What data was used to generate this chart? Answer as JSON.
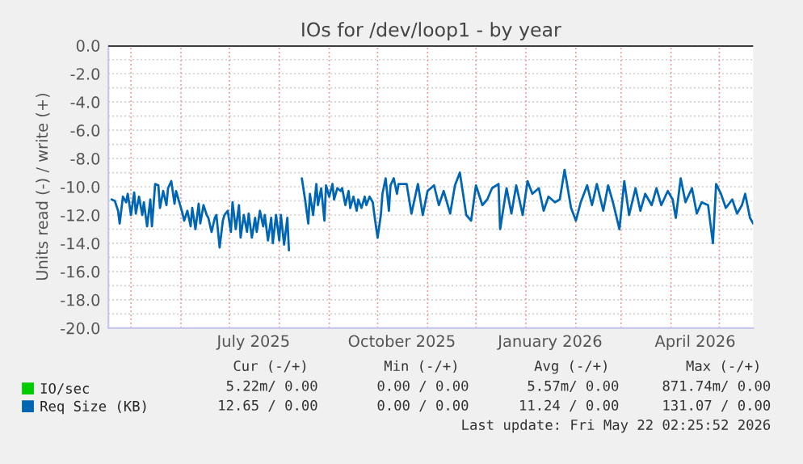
{
  "chart_data": {
    "type": "line",
    "title": "IOs for /dev/loop1 - by year",
    "ylabel": "Units read (-) / write (+)",
    "xlim": [
      "2025-04-17",
      "2026-05-22"
    ],
    "xticks": [
      {
        "value": "2025-05-01",
        "label": null
      },
      {
        "value": "2025-06-01",
        "label": null
      },
      {
        "value": "2025-07-01",
        "label": null
      },
      {
        "value": "2025-08-01",
        "label": null
      },
      {
        "value": "2025-09-01",
        "label": null
      },
      {
        "value": "2025-10-01",
        "label": null
      },
      {
        "value": "2025-11-01",
        "label": null
      },
      {
        "value": "2025-12-01",
        "label": null
      },
      {
        "value": "2026-01-01",
        "label": null
      },
      {
        "value": "2026-02-01",
        "label": null
      },
      {
        "value": "2026-03-01",
        "label": null
      },
      {
        "value": "2026-04-01",
        "label": null
      },
      {
        "value": "2026-05-01",
        "label": null
      },
      {
        "value": "2025-07-16",
        "label": "July 2025"
      },
      {
        "value": "2025-10-16",
        "label": "October 2025"
      },
      {
        "value": "2026-01-16",
        "label": "January 2026"
      },
      {
        "value": "2026-04-16",
        "label": "April 2026"
      }
    ],
    "ylim": [
      -20,
      0
    ],
    "yticks": [
      {
        "value": 0,
        "label": "0.0"
      },
      {
        "value": -2,
        "label": "-2.0"
      },
      {
        "value": -4,
        "label": "-4.0"
      },
      {
        "value": -6,
        "label": "-6.0"
      },
      {
        "value": -8,
        "label": "-8.0"
      },
      {
        "value": -10,
        "label": "-10.0"
      },
      {
        "value": -12,
        "label": "-12.0"
      },
      {
        "value": -14,
        "label": "-14.0"
      },
      {
        "value": -16,
        "label": "-16.0"
      },
      {
        "value": -18,
        "label": "-18.0"
      },
      {
        "value": -20,
        "label": "-20.0"
      }
    ],
    "grid": true,
    "legend": "bottom left",
    "ref_lines": [
      {
        "axis": "y",
        "value": 0,
        "color": "#000000"
      }
    ],
    "series": [
      {
        "name": "IO/sec",
        "color": "#00cc00"
      },
      {
        "name": "Req Size (KB)",
        "color": "#0066b3",
        "x": [
          "2025-04-19",
          "2025-04-21",
          "2025-04-23",
          "2025-04-24",
          "2025-04-26",
          "2025-04-28",
          "2025-04-29",
          "2025-05-01",
          "2025-05-03",
          "2025-05-04",
          "2025-05-06",
          "2025-05-08",
          "2025-05-09",
          "2025-05-11",
          "2025-05-13",
          "2025-05-14",
          "2025-05-16",
          "2025-05-18",
          "2025-05-19",
          "2025-05-21",
          "2025-05-23",
          "2025-05-24",
          "2025-05-26",
          "2025-05-28",
          "2025-05-29",
          "2025-05-31",
          "2025-06-02",
          "2025-06-03",
          "2025-06-05",
          "2025-06-07",
          "2025-06-08",
          "2025-06-10",
          "2025-06-12",
          "2025-06-13",
          "2025-06-15",
          "2025-06-17",
          "2025-06-18",
          "2025-06-20",
          "2025-06-22",
          "2025-06-23",
          "2025-06-25",
          "2025-06-27",
          "2025-06-28",
          "2025-06-30",
          "2025-07-02",
          "2025-07-03",
          "2025-07-05",
          "2025-07-07",
          "2025-07-08",
          "2025-07-10",
          "2025-07-12",
          "2025-07-13",
          "2025-07-15",
          "2025-07-17",
          "2025-07-18",
          "2025-07-20",
          "2025-07-22",
          "2025-07-23",
          "2025-07-25",
          "2025-07-27",
          "2025-07-28",
          "2025-07-30",
          "2025-08-01",
          "2025-08-02",
          "2025-08-04",
          "2025-08-06",
          "2025-08-07",
          "2025-08-10",
          "2025-08-15",
          "2025-08-17",
          "2025-08-19",
          "2025-08-20",
          "2025-08-22",
          "2025-08-24",
          "2025-08-25",
          "2025-08-27",
          "2025-08-29",
          "2025-08-30",
          "2025-09-01",
          "2025-09-03",
          "2025-09-04",
          "2025-09-06",
          "2025-09-08",
          "2025-09-09",
          "2025-09-11",
          "2025-09-13",
          "2025-09-14",
          "2025-09-16",
          "2025-09-18",
          "2025-09-19",
          "2025-09-21",
          "2025-09-23",
          "2025-09-24",
          "2025-09-26",
          "2025-09-28",
          "2025-09-29",
          "2025-10-01",
          "2025-10-03",
          "2025-10-04",
          "2025-10-06",
          "2025-10-08",
          "2025-10-09",
          "2025-10-11",
          "2025-10-13",
          "2025-10-14",
          "2025-10-19",
          "2025-10-22",
          "2025-10-26",
          "2025-10-29",
          "2025-11-01",
          "2025-11-05",
          "2025-11-08",
          "2025-11-11",
          "2025-11-15",
          "2025-11-18",
          "2025-11-21",
          "2025-11-25",
          "2025-11-28",
          "2025-12-01",
          "2025-12-05",
          "2025-12-08",
          "2025-12-11",
          "2025-12-15",
          "2025-12-16",
          "2025-12-20",
          "2025-12-23",
          "2025-12-26",
          "2025-12-30",
          "2026-01-02",
          "2026-01-05",
          "2026-01-09",
          "2026-01-12",
          "2026-01-15",
          "2026-01-19",
          "2026-01-22",
          "2026-01-25",
          "2026-01-29",
          "2026-02-01",
          "2026-02-04",
          "2026-02-08",
          "2026-02-11",
          "2026-02-14",
          "2026-02-18",
          "2026-02-21",
          "2026-02-24",
          "2026-02-28",
          "2026-03-03",
          "2026-03-06",
          "2026-03-10",
          "2026-03-13",
          "2026-03-16",
          "2026-03-20",
          "2026-03-23",
          "2026-03-26",
          "2026-03-30",
          "2026-04-02",
          "2026-04-04",
          "2026-04-07",
          "2026-04-10",
          "2026-04-14",
          "2026-04-17",
          "2026-04-20",
          "2026-04-24",
          "2026-04-27",
          "2026-04-29",
          "2026-05-02",
          "2026-05-05",
          "2026-05-09",
          "2026-05-12",
          "2026-05-15",
          "2026-05-17",
          "2026-05-20",
          "2026-05-22"
        ],
        "values": [
          -10.9,
          -11.0,
          -11.7,
          -12.6,
          -10.7,
          -11.1,
          -10.5,
          -12.0,
          -10.4,
          -11.9,
          -10.7,
          -12.0,
          -11.1,
          -12.8,
          -10.9,
          -12.8,
          -9.8,
          -9.9,
          -11.5,
          -10.3,
          -11.3,
          -10.1,
          -9.6,
          -11.2,
          -10.3,
          -11.1,
          -11.9,
          -12.4,
          -11.7,
          -12.8,
          -11.5,
          -13.0,
          -11.2,
          -12.6,
          -11.3,
          -12.0,
          -12.2,
          -13.2,
          -12.2,
          -12.0,
          -14.3,
          -12.4,
          -12.0,
          -11.7,
          -13.2,
          -11.1,
          -13.0,
          -11.3,
          -13.6,
          -12.0,
          -13.2,
          -11.9,
          -13.6,
          -12.2,
          -13.2,
          -11.7,
          -12.8,
          -12.0,
          -13.8,
          -12.2,
          -14.0,
          -12.0,
          -13.8,
          -12.0,
          -14.1,
          -12.2,
          -14.5,
          null,
          -9.4,
          -10.9,
          -12.6,
          -10.5,
          -12.0,
          -9.8,
          -11.3,
          -10.1,
          -12.4,
          -9.9,
          -10.7,
          -9.8,
          -10.9,
          -10.1,
          -10.3,
          -10.1,
          -11.3,
          -10.3,
          -11.5,
          -10.7,
          -11.7,
          -10.9,
          -11.5,
          -10.7,
          -11.3,
          -10.7,
          -11.1,
          -12.0,
          -13.6,
          -12.0,
          -10.5,
          -9.4,
          -11.7,
          -9.9,
          -9.4,
          -10.5,
          -9.8,
          -9.8,
          -11.9,
          -9.8,
          -12.0,
          -10.3,
          -9.9,
          -11.3,
          -10.3,
          -11.9,
          -9.9,
          -9.0,
          -12.0,
          -12.4,
          -9.9,
          -11.3,
          -10.9,
          -10.1,
          -9.8,
          -13.0,
          -10.1,
          -11.9,
          -9.9,
          -12.0,
          -9.6,
          -10.5,
          -10.1,
          -11.7,
          -10.7,
          -11.1,
          -10.9,
          -8.8,
          -11.5,
          -12.4,
          -11.1,
          -9.9,
          -11.3,
          -9.8,
          -11.7,
          -9.9,
          -11.1,
          -13.0,
          -9.6,
          -12.0,
          -10.1,
          -11.7,
          -10.5,
          -11.3,
          -10.1,
          -11.3,
          -10.3,
          -10.9,
          -12.2,
          -9.4,
          -11.1,
          -10.1,
          -11.9,
          -11.1,
          -11.3,
          -14.0,
          -9.8,
          -10.5,
          -11.5,
          -10.9,
          -11.9,
          -11.3,
          -10.5,
          -12.2,
          -12.6
        ]
      }
    ],
    "annotations": [
      "Cur (-/+)",
      "Min (-/+)",
      "Avg (-/+)",
      "Max (-/+)",
      "5.22m/ 0.00",
      "0.00 / 0.00",
      "5.57m/ 0.00",
      "871.74m/ 0.00",
      "12.65 / 0.00",
      "0.00 / 0.00",
      "11.24 / 0.00",
      "131.07 / 0.00",
      "Last update: Fri May 22 02:25:52 2026"
    ]
  }
}
